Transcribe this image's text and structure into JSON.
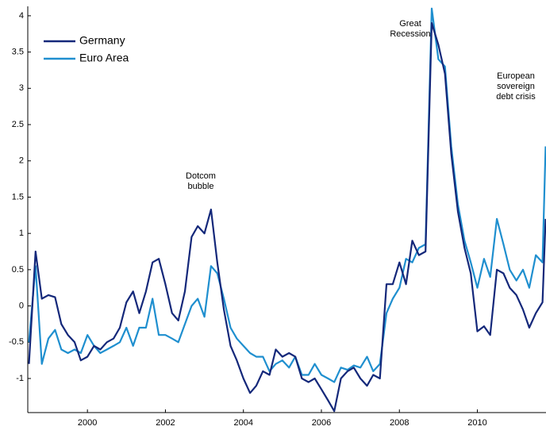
{
  "chart_data": {
    "type": "line",
    "x": [
      1998.5,
      1998.67,
      1998.83,
      1999,
      1999.17,
      1999.33,
      1999.5,
      1999.67,
      1999.83,
      2000,
      2000.17,
      2000.33,
      2000.5,
      2000.67,
      2000.83,
      2001,
      2001.17,
      2001.33,
      2001.5,
      2001.67,
      2001.83,
      2002,
      2002.17,
      2002.33,
      2002.5,
      2002.67,
      2002.83,
      2003,
      2003.17,
      2003.33,
      2003.5,
      2003.67,
      2003.83,
      2004,
      2004.17,
      2004.33,
      2004.5,
      2004.67,
      2004.83,
      2005,
      2005.17,
      2005.33,
      2005.5,
      2005.67,
      2005.83,
      2006,
      2006.17,
      2006.33,
      2006.5,
      2006.67,
      2006.83,
      2007,
      2007.17,
      2007.33,
      2007.5,
      2007.67,
      2007.83,
      2008,
      2008.17,
      2008.33,
      2008.5,
      2008.67,
      2008.83,
      2009,
      2009.17,
      2009.33,
      2009.5,
      2009.67,
      2009.83,
      2010,
      2010.17,
      2010.33,
      2010.5,
      2010.67,
      2010.83,
      2011,
      2011.17,
      2011.33,
      2011.5,
      2011.67,
      2011.75
    ],
    "series": [
      {
        "name": "Germany",
        "color": "#14287a",
        "values": [
          -0.8,
          0.75,
          0.1,
          0.15,
          0.12,
          -0.25,
          -0.4,
          -0.5,
          -0.75,
          -0.7,
          -0.55,
          -0.6,
          -0.5,
          -0.45,
          -0.3,
          0.05,
          0.2,
          -0.1,
          0.2,
          0.6,
          0.65,
          0.3,
          -0.1,
          -0.2,
          0.2,
          0.95,
          1.1,
          1.0,
          1.33,
          0.6,
          -0.05,
          -0.55,
          -0.75,
          -1.0,
          -1.2,
          -1.1,
          -0.9,
          -0.95,
          -0.6,
          -0.7,
          -0.65,
          -0.7,
          -1.0,
          -1.05,
          -1.0,
          -1.15,
          -1.3,
          -1.45,
          -1.0,
          -0.9,
          -0.85,
          -1.0,
          -1.1,
          -0.95,
          -1.0,
          0.3,
          0.3,
          0.6,
          0.3,
          0.9,
          0.7,
          0.75,
          3.9,
          3.6,
          3.2,
          2.1,
          1.3,
          0.8,
          0.45,
          -0.35,
          -0.28,
          -0.4,
          0.5,
          0.45,
          0.25,
          0.15,
          -0.05,
          -0.3,
          -0.1,
          0.05,
          1.2
        ]
      },
      {
        "name": "Euro Area",
        "color": "#1f8fcf",
        "values": [
          -0.5,
          0.55,
          -0.8,
          -0.45,
          -0.33,
          -0.6,
          -0.65,
          -0.6,
          -0.65,
          -0.4,
          -0.55,
          -0.65,
          -0.6,
          -0.55,
          -0.5,
          -0.3,
          -0.55,
          -0.3,
          -0.3,
          0.1,
          -0.4,
          -0.4,
          -0.45,
          -0.5,
          -0.25,
          0.0,
          0.1,
          -0.15,
          0.55,
          0.45,
          0.1,
          -0.3,
          -0.45,
          -0.55,
          -0.65,
          -0.7,
          -0.7,
          -0.9,
          -0.8,
          -0.75,
          -0.85,
          -0.7,
          -0.95,
          -0.95,
          -0.8,
          -0.95,
          -1.0,
          -1.05,
          -0.85,
          -0.88,
          -0.82,
          -0.85,
          -0.7,
          -0.9,
          -0.8,
          -0.1,
          0.1,
          0.25,
          0.65,
          0.6,
          0.8,
          0.85,
          4.1,
          3.4,
          3.3,
          2.2,
          1.4,
          0.9,
          0.6,
          0.25,
          0.65,
          0.4,
          1.2,
          0.85,
          0.5,
          0.35,
          0.5,
          0.25,
          0.7,
          0.6,
          2.2
        ]
      }
    ],
    "xlim": [
      1998.47,
      2011.76
    ],
    "xticks": [
      2000,
      2002,
      2004,
      2006,
      2008,
      2010
    ],
    "ylim": [
      -1.47,
      4.13
    ],
    "yticks": [
      -1,
      -0.5,
      0,
      0.5,
      1,
      1.5,
      2,
      2.5,
      3,
      3.5,
      4
    ],
    "legend": "upper left",
    "annotations": [
      [
        "Dotcom",
        "bubble"
      ],
      [
        "Great",
        "Recession"
      ],
      [
        "European",
        "sovereign",
        "debt crisis"
      ]
    ]
  }
}
